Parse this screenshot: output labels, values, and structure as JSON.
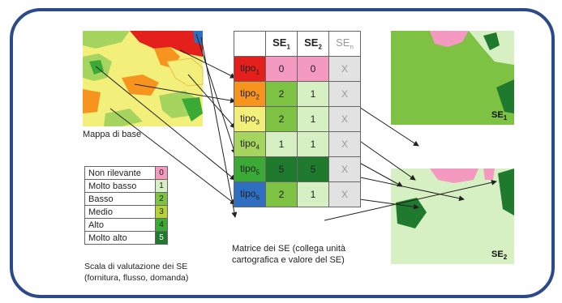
{
  "base_map_label": "Mappa di base",
  "matrix": {
    "header": [
      "SE",
      "SE",
      "SE"
    ],
    "header_sub": [
      "1",
      "2",
      "n"
    ],
    "rows": [
      {
        "tipo": "tipo",
        "sub": "1",
        "color": "#e3201b",
        "v1": "0",
        "v2": "0",
        "c1": "#f49ac1",
        "c2": "#f49ac1",
        "vn": "X"
      },
      {
        "tipo": "tipo",
        "sub": "2",
        "color": "#f7941d",
        "v1": "2",
        "v2": "1",
        "c1": "#7dc242",
        "c2": "#d7f0c3",
        "vn": "X"
      },
      {
        "tipo": "tipo",
        "sub": "3",
        "color": "#f3ef7b",
        "v1": "2",
        "v2": "1",
        "c1": "#7dc242",
        "c2": "#d7f0c3",
        "vn": "X"
      },
      {
        "tipo": "tipo",
        "sub": "4",
        "color": "#a6d55f",
        "v1": "1",
        "v2": "1",
        "c1": "#d7f0c3",
        "c2": "#d7f0c3",
        "vn": "X"
      },
      {
        "tipo": "tipo",
        "sub": "5",
        "color": "#3aa935",
        "v1": "5",
        "v2": "5",
        "c1": "#1f7a2e",
        "c2": "#1f7a2e",
        "vn": "X"
      },
      {
        "tipo": "tipo",
        "sub": "6",
        "color": "#2f6fc1",
        "v1": "2",
        "v2": "1",
        "c1": "#7dc242",
        "c2": "#d7f0c3",
        "vn": "X"
      }
    ],
    "caption_line1": "Matrice dei SE (collega unità",
    "caption_line2": "cartografica e valore del SE)"
  },
  "legend": {
    "items": [
      {
        "name": "Non rilevante",
        "value": "0",
        "color": "#f49ac1"
      },
      {
        "name": "Molto basso",
        "value": "1",
        "color": "#d7f0c3"
      },
      {
        "name": "Basso",
        "value": "2",
        "color": "#7dc242"
      },
      {
        "name": "Medio",
        "value": "3",
        "color": "#b5d334"
      },
      {
        "name": "Alto",
        "value": "4",
        "color": "#3aa935"
      },
      {
        "name": "Molto alto",
        "value": "5",
        "color": "#1f7a2e"
      }
    ],
    "caption_line1": "Scala di valutazione dei SE",
    "caption_line2": "(fornitura, flusso, domanda)"
  },
  "output_maps": [
    {
      "label": "SE",
      "sub": "1"
    },
    {
      "label": "SE",
      "sub": "2"
    }
  ]
}
